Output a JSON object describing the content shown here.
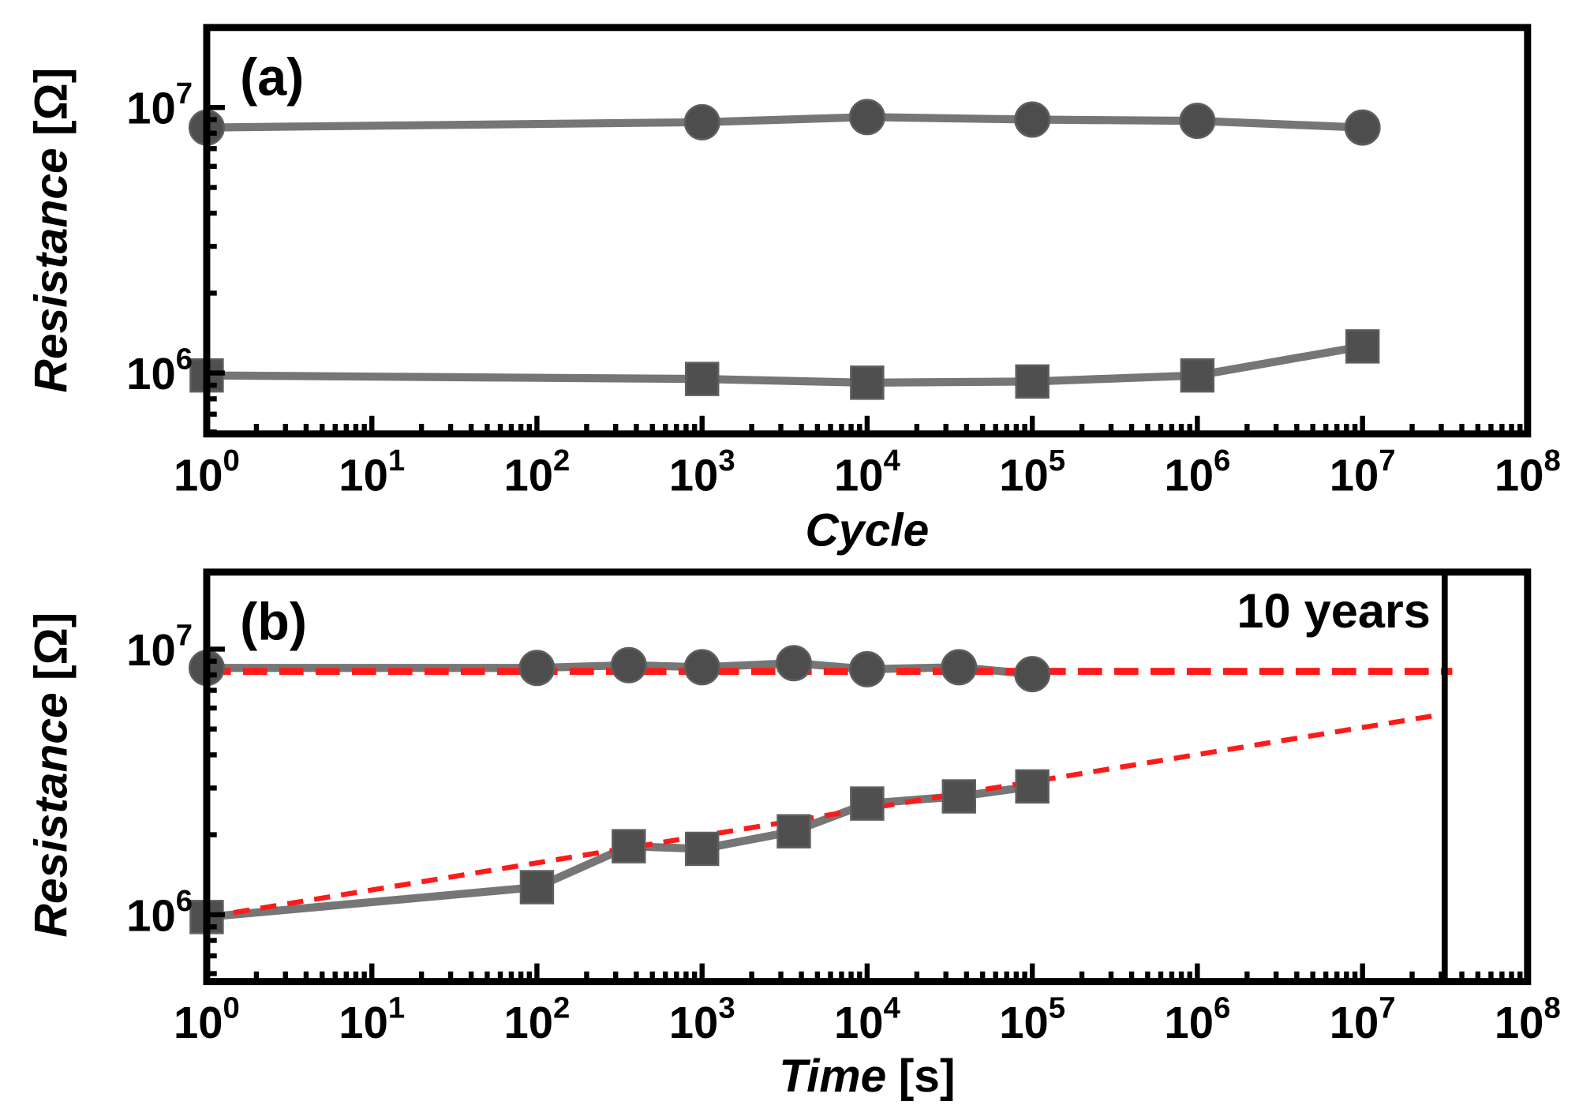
{
  "chart_data": [
    {
      "type": "line",
      "panel_label": "(a)",
      "xlabel": "Cycle",
      "ylabel": "Resistance",
      "ylabel_unit": "[Ω]",
      "xscale": "log",
      "yscale": "log",
      "xlim": [
        1,
        100000000
      ],
      "ylim": [
        590000,
        20000000
      ],
      "grid": false,
      "legend": "none",
      "tick_base": "10",
      "x_ticks": [
        1,
        10,
        100,
        1000,
        10000,
        100000,
        1000000,
        10000000,
        100000000
      ],
      "x_tick_exponents": [
        "0",
        "1",
        "2",
        "3",
        "4",
        "5",
        "6",
        "7",
        "8"
      ],
      "y_ticks": [
        1000000,
        10000000
      ],
      "y_tick_exponents": [
        "6",
        "7"
      ],
      "series": [
        {
          "marker": "circle",
          "color": "#4d4d4d",
          "line_color": "#767676",
          "x": [
            1,
            1000,
            10000,
            100000,
            1000000,
            10000000
          ],
          "y": [
            8400000,
            8800000,
            9200000,
            9000000,
            8900000,
            8400000
          ]
        },
        {
          "marker": "square",
          "color": "#4f4f4f",
          "line_color": "#767676",
          "x": [
            1,
            1000,
            10000,
            100000,
            1000000,
            10000000
          ],
          "y": [
            980000,
            950000,
            920000,
            930000,
            980000,
            1260000
          ]
        }
      ]
    },
    {
      "type": "line",
      "panel_label": "(b)",
      "xlabel": "Time",
      "xlabel_unit": "[s]",
      "ylabel": "Resistance",
      "ylabel_unit": "[Ω]",
      "xscale": "log",
      "yscale": "log",
      "xlim": [
        1,
        100000000
      ],
      "ylim": [
        560000,
        19500000
      ],
      "grid": false,
      "legend": "none",
      "tick_base": "10",
      "x_ticks": [
        1,
        10,
        100,
        1000,
        10000,
        100000,
        1000000,
        10000000,
        100000000
      ],
      "x_tick_exponents": [
        "0",
        "1",
        "2",
        "3",
        "4",
        "5",
        "6",
        "7",
        "8"
      ],
      "y_ticks": [
        1000000,
        10000000
      ],
      "y_tick_exponents": [
        "6",
        "7"
      ],
      "series": [
        {
          "marker": "circle",
          "color": "#4d4d4d",
          "line_color": "#767676",
          "x": [
            1,
            100,
            360,
            1000,
            3600,
            10000,
            36000,
            100000
          ],
          "y": [
            8500000,
            8500000,
            8700000,
            8550000,
            8850000,
            8400000,
            8550000,
            8050000
          ]
        },
        {
          "marker": "square",
          "color": "#4f4f4f",
          "line_color": "#767676",
          "x": [
            1,
            100,
            360,
            1000,
            3600,
            10000,
            36000,
            100000
          ],
          "y": [
            980000,
            1270000,
            1810000,
            1770000,
            2060000,
            2620000,
            2790000,
            3040000
          ]
        }
      ],
      "fits": [
        {
          "color": "#ff1a1a",
          "style": "dashed",
          "x": [
            1,
            35000000
          ],
          "y": [
            8250000,
            8250000
          ]
        },
        {
          "color": "#ff1a1a",
          "style": "dashed",
          "x": [
            1,
            31500000
          ],
          "y": [
            980000,
            5700000
          ]
        }
      ],
      "annotation": {
        "text": "10 years",
        "x": 31500000
      }
    }
  ]
}
